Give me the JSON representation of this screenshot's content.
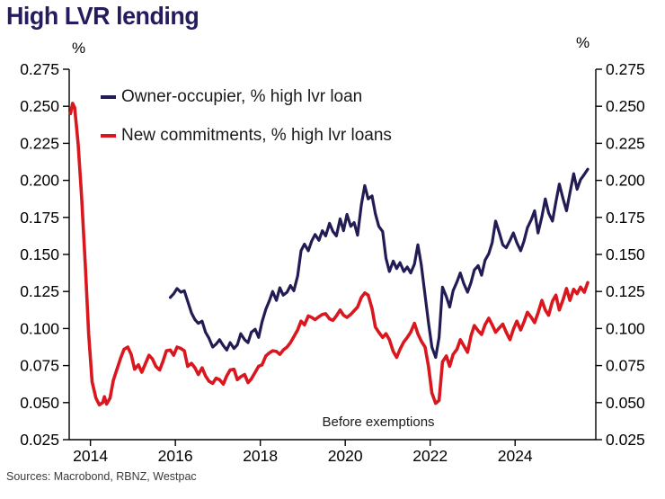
{
  "title": "High LVR lending",
  "sources": "Sources: Macrobond, RBNZ, Westpac",
  "chart_data": {
    "type": "line",
    "title": "High LVR lending",
    "xlabel": "",
    "ylabel_left": "%",
    "ylabel_right": "%",
    "xlim": [
      2013.5,
      2025.9
    ],
    "ylim": [
      0.025,
      0.275
    ],
    "grid": false,
    "legend_position": "top-left-inside",
    "axis_color": "#000000",
    "y_ticks": [
      {
        "value": 0.275,
        "label": "0.275"
      },
      {
        "value": 0.25,
        "label": "0.250"
      },
      {
        "value": 0.225,
        "label": "0.225"
      },
      {
        "value": 0.2,
        "label": "0.200"
      },
      {
        "value": 0.175,
        "label": "0.175"
      },
      {
        "value": 0.15,
        "label": "0.150"
      },
      {
        "value": 0.125,
        "label": "0.125"
      },
      {
        "value": 0.1,
        "label": "0.100"
      },
      {
        "value": 0.075,
        "label": "0.075"
      },
      {
        "value": 0.05,
        "label": "0.050"
      },
      {
        "value": 0.025,
        "label": "0.025"
      }
    ],
    "x_ticks": [
      {
        "value": 2014,
        "label": "2014"
      },
      {
        "value": 2016,
        "label": "2016"
      },
      {
        "value": 2018,
        "label": "2018"
      },
      {
        "value": 2020,
        "label": "2020"
      },
      {
        "value": 2022,
        "label": "2022"
      },
      {
        "value": 2024,
        "label": "2024"
      }
    ],
    "annotation": {
      "text": "Before exemptions",
      "x": 2020.78,
      "y": 0.037
    },
    "series": [
      {
        "name": "Owner-occupier, % high lvr loan",
        "color": "#221c55",
        "stroke_width": 3.2,
        "points": [
          [
            2015.88,
            0.121
          ],
          [
            2015.96,
            0.1235
          ],
          [
            2016.04,
            0.127
          ],
          [
            2016.13,
            0.1245
          ],
          [
            2016.21,
            0.1255
          ],
          [
            2016.29,
            0.1185
          ],
          [
            2016.38,
            0.1105
          ],
          [
            2016.46,
            0.106
          ],
          [
            2016.54,
            0.1035
          ],
          [
            2016.63,
            0.105
          ],
          [
            2016.71,
            0.0975
          ],
          [
            2016.79,
            0.0935
          ],
          [
            2016.88,
            0.0875
          ],
          [
            2016.96,
            0.0895
          ],
          [
            2017.04,
            0.0925
          ],
          [
            2017.13,
            0.0885
          ],
          [
            2017.21,
            0.0855
          ],
          [
            2017.29,
            0.0905
          ],
          [
            2017.38,
            0.0865
          ],
          [
            2017.46,
            0.089
          ],
          [
            2017.54,
            0.0965
          ],
          [
            2017.63,
            0.0925
          ],
          [
            2017.71,
            0.0905
          ],
          [
            2017.79,
            0.0975
          ],
          [
            2017.88,
            0.0995
          ],
          [
            2017.96,
            0.094
          ],
          [
            2018.04,
            0.1045
          ],
          [
            2018.13,
            0.113
          ],
          [
            2018.21,
            0.1185
          ],
          [
            2018.29,
            0.125
          ],
          [
            2018.38,
            0.119
          ],
          [
            2018.46,
            0.1275
          ],
          [
            2018.54,
            0.1225
          ],
          [
            2018.63,
            0.1245
          ],
          [
            2018.71,
            0.129
          ],
          [
            2018.79,
            0.1255
          ],
          [
            2018.88,
            0.1355
          ],
          [
            2018.96,
            0.1525
          ],
          [
            2019.04,
            0.157
          ],
          [
            2019.13,
            0.1525
          ],
          [
            2019.21,
            0.159
          ],
          [
            2019.29,
            0.1635
          ],
          [
            2019.38,
            0.1595
          ],
          [
            2019.46,
            0.166
          ],
          [
            2019.54,
            0.1625
          ],
          [
            2019.63,
            0.171
          ],
          [
            2019.71,
            0.1655
          ],
          [
            2019.79,
            0.1625
          ],
          [
            2019.88,
            0.174
          ],
          [
            2019.96,
            0.166
          ],
          [
            2020.04,
            0.177
          ],
          [
            2020.13,
            0.169
          ],
          [
            2020.21,
            0.1715
          ],
          [
            2020.29,
            0.163
          ],
          [
            2020.38,
            0.1835
          ],
          [
            2020.46,
            0.1965
          ],
          [
            2020.54,
            0.1875
          ],
          [
            2020.63,
            0.1895
          ],
          [
            2020.71,
            0.1775
          ],
          [
            2020.79,
            0.169
          ],
          [
            2020.88,
            0.1655
          ],
          [
            2020.96,
            0.1475
          ],
          [
            2021.04,
            0.1385
          ],
          [
            2021.13,
            0.1455
          ],
          [
            2021.21,
            0.1405
          ],
          [
            2021.29,
            0.1445
          ],
          [
            2021.38,
            0.1385
          ],
          [
            2021.46,
            0.1415
          ],
          [
            2021.54,
            0.1375
          ],
          [
            2021.63,
            0.1435
          ],
          [
            2021.71,
            0.1565
          ],
          [
            2021.79,
            0.143
          ],
          [
            2021.88,
            0.1225
          ],
          [
            2021.96,
            0.104
          ],
          [
            2022.04,
            0.0875
          ],
          [
            2022.13,
            0.0805
          ],
          [
            2022.21,
            0.094
          ],
          [
            2022.29,
            0.128
          ],
          [
            2022.38,
            0.1215
          ],
          [
            2022.46,
            0.1145
          ],
          [
            2022.54,
            0.1255
          ],
          [
            2022.63,
            0.1315
          ],
          [
            2022.71,
            0.1375
          ],
          [
            2022.79,
            0.1305
          ],
          [
            2022.88,
            0.1245
          ],
          [
            2022.96,
            0.131
          ],
          [
            2023.04,
            0.1395
          ],
          [
            2023.13,
            0.1425
          ],
          [
            2023.21,
            0.136
          ],
          [
            2023.29,
            0.146
          ],
          [
            2023.38,
            0.1505
          ],
          [
            2023.46,
            0.158
          ],
          [
            2023.54,
            0.1725
          ],
          [
            2023.63,
            0.1645
          ],
          [
            2023.71,
            0.1565
          ],
          [
            2023.79,
            0.1545
          ],
          [
            2023.88,
            0.1595
          ],
          [
            2023.96,
            0.1645
          ],
          [
            2024.04,
            0.158
          ],
          [
            2024.13,
            0.1525
          ],
          [
            2024.21,
            0.159
          ],
          [
            2024.29,
            0.168
          ],
          [
            2024.38,
            0.1735
          ],
          [
            2024.46,
            0.1795
          ],
          [
            2024.54,
            0.1645
          ],
          [
            2024.63,
            0.1755
          ],
          [
            2024.71,
            0.1875
          ],
          [
            2024.79,
            0.178
          ],
          [
            2024.88,
            0.1725
          ],
          [
            2024.96,
            0.1855
          ],
          [
            2025.04,
            0.1975
          ],
          [
            2025.13,
            0.1875
          ],
          [
            2025.21,
            0.1795
          ],
          [
            2025.29,
            0.1915
          ],
          [
            2025.38,
            0.2045
          ],
          [
            2025.46,
            0.194
          ],
          [
            2025.54,
            0.2005
          ],
          [
            2025.63,
            0.204
          ],
          [
            2025.71,
            0.2075
          ]
        ]
      },
      {
        "name": "New commitments, % high lvr loans",
        "color": "#d9171e",
        "stroke_width": 3.6,
        "points": [
          [
            2013.53,
            0.245
          ],
          [
            2013.58,
            0.252
          ],
          [
            2013.63,
            0.249
          ],
          [
            2013.71,
            0.225
          ],
          [
            2013.79,
            0.19
          ],
          [
            2013.88,
            0.142
          ],
          [
            2013.96,
            0.096
          ],
          [
            2014.04,
            0.064
          ],
          [
            2014.13,
            0.053
          ],
          [
            2014.21,
            0.0485
          ],
          [
            2014.29,
            0.05
          ],
          [
            2014.33,
            0.054
          ],
          [
            2014.38,
            0.049
          ],
          [
            2014.46,
            0.053
          ],
          [
            2014.54,
            0.065
          ],
          [
            2014.63,
            0.073
          ],
          [
            2014.71,
            0.08
          ],
          [
            2014.79,
            0.086
          ],
          [
            2014.88,
            0.0875
          ],
          [
            2014.96,
            0.0825
          ],
          [
            2015.04,
            0.0725
          ],
          [
            2015.13,
            0.0755
          ],
          [
            2015.21,
            0.0705
          ],
          [
            2015.29,
            0.076
          ],
          [
            2015.38,
            0.082
          ],
          [
            2015.46,
            0.0795
          ],
          [
            2015.54,
            0.0745
          ],
          [
            2015.63,
            0.072
          ],
          [
            2015.71,
            0.078
          ],
          [
            2015.79,
            0.085
          ],
          [
            2015.88,
            0.0855
          ],
          [
            2015.96,
            0.082
          ],
          [
            2016.04,
            0.0875
          ],
          [
            2016.13,
            0.0865
          ],
          [
            2016.21,
            0.085
          ],
          [
            2016.29,
            0.0745
          ],
          [
            2016.38,
            0.0765
          ],
          [
            2016.46,
            0.0735
          ],
          [
            2016.54,
            0.069
          ],
          [
            2016.63,
            0.0735
          ],
          [
            2016.71,
            0.068
          ],
          [
            2016.79,
            0.0645
          ],
          [
            2016.88,
            0.063
          ],
          [
            2016.96,
            0.0665
          ],
          [
            2017.04,
            0.0655
          ],
          [
            2017.13,
            0.0625
          ],
          [
            2017.21,
            0.068
          ],
          [
            2017.29,
            0.072
          ],
          [
            2017.38,
            0.0725
          ],
          [
            2017.46,
            0.0655
          ],
          [
            2017.54,
            0.0675
          ],
          [
            2017.63,
            0.069
          ],
          [
            2017.71,
            0.0635
          ],
          [
            2017.79,
            0.066
          ],
          [
            2017.88,
            0.0705
          ],
          [
            2017.96,
            0.0745
          ],
          [
            2018.04,
            0.0755
          ],
          [
            2018.13,
            0.0815
          ],
          [
            2018.21,
            0.0835
          ],
          [
            2018.29,
            0.085
          ],
          [
            2018.38,
            0.0845
          ],
          [
            2018.46,
            0.0825
          ],
          [
            2018.54,
            0.0855
          ],
          [
            2018.63,
            0.0875
          ],
          [
            2018.71,
            0.0905
          ],
          [
            2018.79,
            0.0945
          ],
          [
            2018.88,
            0.099
          ],
          [
            2018.96,
            0.105
          ],
          [
            2019.04,
            0.1025
          ],
          [
            2019.13,
            0.1085
          ],
          [
            2019.21,
            0.1075
          ],
          [
            2019.29,
            0.106
          ],
          [
            2019.38,
            0.108
          ],
          [
            2019.46,
            0.1095
          ],
          [
            2019.54,
            0.11
          ],
          [
            2019.63,
            0.1065
          ],
          [
            2019.71,
            0.1055
          ],
          [
            2019.79,
            0.1085
          ],
          [
            2019.88,
            0.1125
          ],
          [
            2019.96,
            0.109
          ],
          [
            2020.04,
            0.1075
          ],
          [
            2020.13,
            0.1095
          ],
          [
            2020.21,
            0.112
          ],
          [
            2020.29,
            0.1145
          ],
          [
            2020.38,
            0.121
          ],
          [
            2020.46,
            0.124
          ],
          [
            2020.54,
            0.1225
          ],
          [
            2020.63,
            0.1135
          ],
          [
            2020.71,
            0.101
          ],
          [
            2020.79,
            0.0975
          ],
          [
            2020.88,
            0.094
          ],
          [
            2020.96,
            0.0965
          ],
          [
            2021.04,
            0.0925
          ],
          [
            2021.13,
            0.0845
          ],
          [
            2021.21,
            0.0805
          ],
          [
            2021.29,
            0.086
          ],
          [
            2021.38,
            0.091
          ],
          [
            2021.46,
            0.094
          ],
          [
            2021.54,
            0.0975
          ],
          [
            2021.63,
            0.1035
          ],
          [
            2021.71,
            0.0965
          ],
          [
            2021.79,
            0.0915
          ],
          [
            2021.88,
            0.0875
          ],
          [
            2021.96,
            0.0745
          ],
          [
            2022.04,
            0.0565
          ],
          [
            2022.13,
            0.0495
          ],
          [
            2022.21,
            0.0515
          ],
          [
            2022.29,
            0.0775
          ],
          [
            2022.38,
            0.0815
          ],
          [
            2022.46,
            0.0745
          ],
          [
            2022.54,
            0.0825
          ],
          [
            2022.63,
            0.086
          ],
          [
            2022.71,
            0.0925
          ],
          [
            2022.79,
            0.0885
          ],
          [
            2022.88,
            0.084
          ],
          [
            2022.96,
            0.095
          ],
          [
            2023.04,
            0.102
          ],
          [
            2023.13,
            0.0985
          ],
          [
            2023.21,
            0.096
          ],
          [
            2023.29,
            0.1025
          ],
          [
            2023.38,
            0.107
          ],
          [
            2023.46,
            0.1025
          ],
          [
            2023.54,
            0.0975
          ],
          [
            2023.63,
            0.1005
          ],
          [
            2023.71,
            0.103
          ],
          [
            2023.79,
            0.0975
          ],
          [
            2023.88,
            0.0925
          ],
          [
            2023.96,
            0.0995
          ],
          [
            2024.04,
            0.105
          ],
          [
            2024.13,
            0.099
          ],
          [
            2024.21,
            0.1045
          ],
          [
            2024.29,
            0.111
          ],
          [
            2024.38,
            0.1075
          ],
          [
            2024.46,
            0.104
          ],
          [
            2024.54,
            0.1105
          ],
          [
            2024.63,
            0.119
          ],
          [
            2024.71,
            0.1125
          ],
          [
            2024.79,
            0.109
          ],
          [
            2024.88,
            0.1185
          ],
          [
            2024.96,
            0.1225
          ],
          [
            2025.04,
            0.1125
          ],
          [
            2025.13,
            0.1195
          ],
          [
            2025.21,
            0.127
          ],
          [
            2025.29,
            0.119
          ],
          [
            2025.38,
            0.1265
          ],
          [
            2025.46,
            0.1235
          ],
          [
            2025.54,
            0.128
          ],
          [
            2025.63,
            0.1245
          ],
          [
            2025.71,
            0.131
          ]
        ]
      }
    ]
  }
}
